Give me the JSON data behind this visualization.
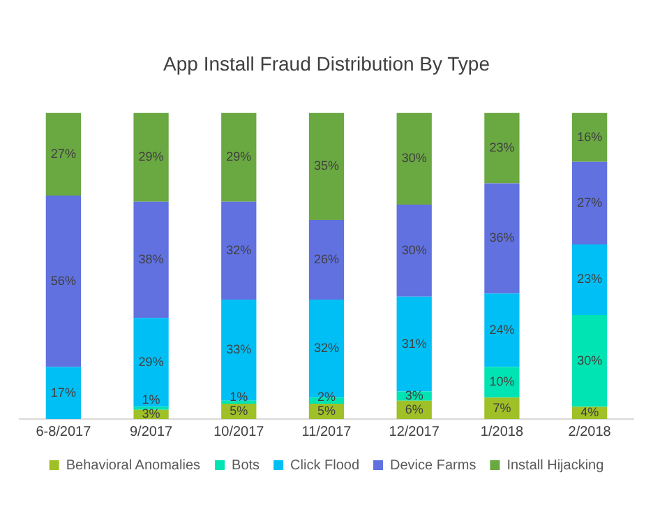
{
  "chart_data": {
    "type": "bar",
    "stacked": true,
    "title": "App Install Fraud Distribution By Type",
    "categories": [
      "6-8/2017",
      "9/2017",
      "10/2017",
      "11/2017",
      "12/2017",
      "1/2018",
      "2/2018"
    ],
    "legend": "bottom",
    "grid": false,
    "tick_labels": "x",
    "series": [
      {
        "name": "Behavioral Anomalies",
        "color": "#9fc127",
        "values": [
          null,
          3,
          5,
          5,
          6,
          7,
          4
        ],
        "value_labels": [
          null,
          "3%",
          "5%",
          "5%",
          "6%",
          "7%",
          "4%"
        ]
      },
      {
        "name": "Bots",
        "color": "#00e3b2",
        "values": [
          null,
          1,
          1,
          2,
          3,
          10,
          30
        ],
        "value_labels": [
          null,
          "1%",
          "1%",
          "2%",
          "3%",
          "10%",
          "30%"
        ]
      },
      {
        "name": "Click Flood",
        "color": "#00bff5",
        "values": [
          17,
          29,
          33,
          32,
          31,
          24,
          23
        ],
        "value_labels": [
          "17%",
          "29%",
          "33%",
          "32%",
          "31%",
          "24%",
          "23%"
        ]
      },
      {
        "name": "Device Farms",
        "color": "#6171e0",
        "values": [
          56,
          38,
          32,
          26,
          30,
          36,
          27
        ],
        "value_labels": [
          "56%",
          "38%",
          "32%",
          "26%",
          "30%",
          "36%",
          "27%"
        ]
      },
      {
        "name": "Install Hijacking",
        "color": "#6aa842",
        "values": [
          27,
          29,
          29,
          35,
          30,
          23,
          16
        ],
        "value_labels": [
          "27%",
          "29%",
          "29%",
          "35%",
          "30%",
          "23%",
          "16%"
        ]
      }
    ]
  }
}
